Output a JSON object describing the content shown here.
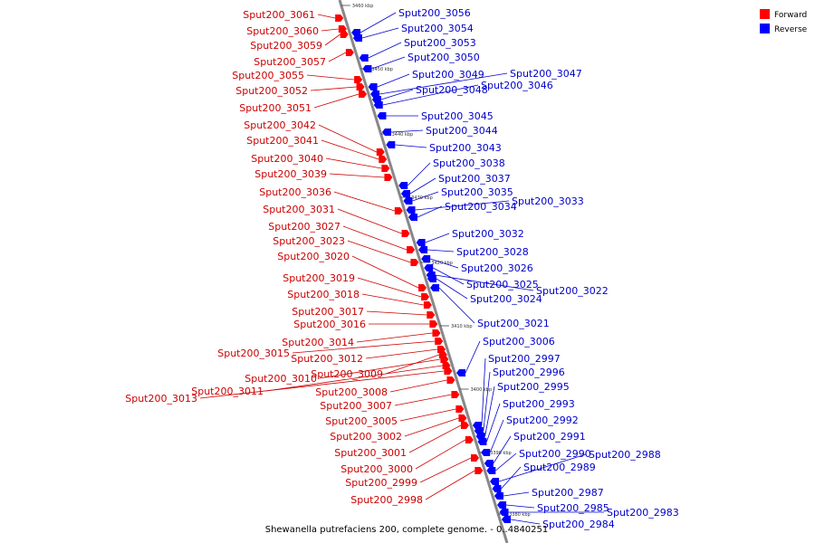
{
  "colors": {
    "forward": "#ff0000",
    "reverse": "#0000ff",
    "axis": "#888888",
    "forward_leader": "#cc0000",
    "reverse_leader": "#0000cc"
  },
  "legend": {
    "forward_label": "Forward",
    "reverse_label": "Reverse"
  },
  "caption": "Shewanella putrefaciens 200, complete genome. - 0..4840251",
  "ticks": [
    "3460 kbp",
    "3450 kbp",
    "3440 kbp",
    "3430 kbp",
    "3420 kbp",
    "3410 kbp",
    "3400 kbp",
    "3390 kbp",
    "3380 kbp"
  ],
  "forward_genes": [
    "Sput200_3061",
    "Sput200_3060",
    "Sput200_3059",
    "Sput200_3057",
    "Sput200_3055",
    "Sput200_3052",
    "Sput200_3051",
    "Sput200_3042",
    "Sput200_3041",
    "Sput200_3040",
    "Sput200_3039",
    "Sput200_3036",
    "Sput200_3031",
    "Sput200_3027",
    "Sput200_3023",
    "Sput200_3020",
    "Sput200_3019",
    "Sput200_3018",
    "Sput200_3017",
    "Sput200_3016",
    "Sput200_3014",
    "Sput200_3015",
    "Sput200_3012",
    "Sput200_3009",
    "Sput200_3010",
    "Sput200_3011",
    "Sput200_3013",
    "Sput200_3008",
    "Sput200_3007",
    "Sput200_3005",
    "Sput200_3002",
    "Sput200_3001",
    "Sput200_3000",
    "Sput200_2999",
    "Sput200_2998"
  ],
  "reverse_genes": [
    "Sput200_3056",
    "Sput200_3054",
    "Sput200_3053",
    "Sput200_3050",
    "Sput200_3049",
    "Sput200_3047",
    "Sput200_3048",
    "Sput200_3046",
    "Sput200_3045",
    "Sput200_3044",
    "Sput200_3043",
    "Sput200_3038",
    "Sput200_3037",
    "Sput200_3035",
    "Sput200_3033",
    "Sput200_3034",
    "Sput200_3032",
    "Sput200_3028",
    "Sput200_3026",
    "Sput200_3025",
    "Sput200_3022",
    "Sput200_3024",
    "Sput200_3021",
    "Sput200_3006",
    "Sput200_2997",
    "Sput200_2996",
    "Sput200_2995",
    "Sput200_2993",
    "Sput200_2992",
    "Sput200_2991",
    "Sput200_2990",
    "Sput200_2988",
    "Sput200_2989",
    "Sput200_2987",
    "Sput200_2985",
    "Sput200_2983",
    "Sput200_2984"
  ]
}
